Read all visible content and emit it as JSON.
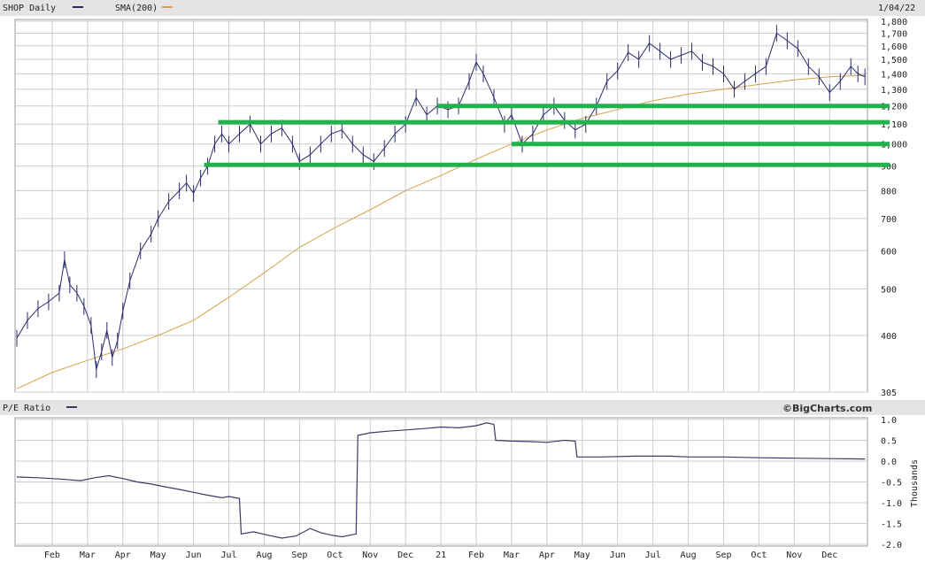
{
  "header": {
    "symbol_label": "SHOP Daily",
    "sma_label": "SMA(200)",
    "date_label": "1/04/22"
  },
  "lower_header": {
    "pe_label": "P/E Ratio",
    "brand": "©BigCharts.com",
    "y_unit": "Thousands"
  },
  "colors": {
    "price": "#2b2b6b",
    "sma": "#d4a24a",
    "support_lines": "#22b14c",
    "pe": "#3a3a6a",
    "grid": "#cccccc",
    "header_bg": "#e4e4e4"
  },
  "chart_data": [
    {
      "type": "line",
      "name": "price-panel",
      "scale": "log",
      "ylim": [
        305,
        1800
      ],
      "y_ticks": [
        305,
        400,
        500,
        600,
        700,
        800,
        900,
        1000,
        1100,
        1200,
        1300,
        1400,
        1500,
        1600,
        1700,
        1800
      ],
      "y_tick_labels": [
        "305",
        "400",
        "500",
        "600",
        "700",
        "800",
        "900",
        "1,000",
        "1,100",
        "1,200",
        "1,300",
        "1,400",
        "1,500",
        "1,600",
        "1,700",
        "1,800"
      ],
      "x_tick_labels": [
        "Feb",
        "Mar",
        "Apr",
        "May",
        "Jun",
        "Jul",
        "Aug",
        "Sep",
        "Oct",
        "Nov",
        "Dec",
        "21",
        "Feb",
        "Mar",
        "Apr",
        "May",
        "Jun",
        "Jul",
        "Aug",
        "Sep",
        "Oct",
        "Nov",
        "Dec"
      ],
      "x_range_months": [
        0,
        24
      ],
      "series": [
        {
          "name": "SHOP",
          "kind": "price",
          "x_month": [
            0,
            0.3,
            0.6,
            0.9,
            1.2,
            1.35,
            1.5,
            1.7,
            1.9,
            2.1,
            2.25,
            2.4,
            2.55,
            2.7,
            2.85,
            3.0,
            3.2,
            3.5,
            3.8,
            4.0,
            4.3,
            4.6,
            4.8,
            5.0,
            5.2,
            5.4,
            5.6,
            5.8,
            6.0,
            6.3,
            6.6,
            6.9,
            7.2,
            7.5,
            7.8,
            8.0,
            8.3,
            8.6,
            8.9,
            9.2,
            9.5,
            9.8,
            10.1,
            10.4,
            10.7,
            11.0,
            11.3,
            11.6,
            11.9,
            12.2,
            12.5,
            12.8,
            13.0,
            13.2,
            13.5,
            13.8,
            14.0,
            14.3,
            14.6,
            14.9,
            15.2,
            15.5,
            15.8,
            16.1,
            16.4,
            16.7,
            17.0,
            17.3,
            17.6,
            17.9,
            18.2,
            18.5,
            18.8,
            19.1,
            19.4,
            19.7,
            20.0,
            20.3,
            20.6,
            20.9,
            21.2,
            21.5,
            21.8,
            22.1,
            22.4,
            22.7,
            23.0,
            23.3,
            23.6,
            23.8,
            24.0
          ],
          "values": [
            395,
            430,
            455,
            470,
            490,
            575,
            510,
            490,
            460,
            420,
            340,
            370,
            410,
            360,
            390,
            450,
            520,
            600,
            650,
            700,
            760,
            800,
            830,
            790,
            850,
            900,
            1000,
            1050,
            1000,
            1050,
            1100,
            1000,
            1050,
            1080,
            1000,
            920,
            950,
            1000,
            1050,
            1070,
            1000,
            950,
            920,
            980,
            1050,
            1100,
            1250,
            1150,
            1200,
            1180,
            1200,
            1350,
            1480,
            1400,
            1250,
            1100,
            1150,
            1000,
            1050,
            1150,
            1200,
            1120,
            1070,
            1100,
            1200,
            1350,
            1420,
            1550,
            1500,
            1620,
            1560,
            1500,
            1530,
            1560,
            1480,
            1450,
            1400,
            1300,
            1350,
            1400,
            1450,
            1700,
            1640,
            1580,
            1450,
            1380,
            1280,
            1350,
            1450,
            1400,
            1380
          ]
        },
        {
          "name": "SMA(200)",
          "kind": "sma",
          "x_month": [
            0,
            1,
            2,
            3,
            4,
            5,
            6,
            7,
            8,
            9,
            10,
            11,
            12,
            13,
            14,
            15,
            16,
            17,
            18,
            19,
            20,
            21,
            22,
            23,
            24
          ],
          "values": [
            310,
            335,
            355,
            375,
            400,
            430,
            480,
            540,
            610,
            670,
            730,
            800,
            860,
            930,
            1000,
            1070,
            1130,
            1180,
            1230,
            1270,
            1300,
            1330,
            1360,
            1380,
            1390
          ]
        }
      ],
      "support_lines": [
        {
          "level": 1200,
          "x_start_month": 11.9,
          "x_end_month": 24.7
        },
        {
          "level": 1110,
          "x_start_month": 5.7,
          "x_end_month": 24.7
        },
        {
          "level": 1000,
          "x_start_month": 14.0,
          "x_end_month": 24.7
        },
        {
          "level": 905,
          "x_start_month": 5.3,
          "x_end_month": 24.7
        }
      ]
    },
    {
      "type": "line",
      "name": "pe-panel",
      "ylabel": "Thousands",
      "ylim": [
        -2.0,
        1.0
      ],
      "y_ticks": [
        1.0,
        0.5,
        0.0,
        -0.5,
        -1.0,
        -1.5,
        -2.0
      ],
      "y_tick_labels": [
        "1.0",
        "0.5",
        "0.0",
        "-0.5",
        "-1.0",
        "-1.5",
        "-2.0"
      ],
      "series": [
        {
          "name": "P/E Ratio",
          "x_month": [
            0,
            0.6,
            1.2,
            1.8,
            2.2,
            2.6,
            3.0,
            3.4,
            3.8,
            4.2,
            4.6,
            5.0,
            5.4,
            5.8,
            6.0,
            6.3,
            6.35,
            6.7,
            7.1,
            7.5,
            7.9,
            8.3,
            8.6,
            8.9,
            9.2,
            9.6,
            9.65,
            10.0,
            10.5,
            11.0,
            11.5,
            12.0,
            12.5,
            13.0,
            13.3,
            13.5,
            13.55,
            14.0,
            14.5,
            15.0,
            15.5,
            15.8,
            15.85,
            16.5,
            17.5,
            18.5,
            19.0,
            20.0,
            21.0,
            22.0,
            23.0,
            24.0
          ],
          "values": [
            -0.38,
            -0.4,
            -0.43,
            -0.47,
            -0.4,
            -0.35,
            -0.42,
            -0.5,
            -0.55,
            -0.62,
            -0.68,
            -0.75,
            -0.82,
            -0.88,
            -0.85,
            -0.9,
            -1.75,
            -1.7,
            -1.78,
            -1.85,
            -1.8,
            -1.62,
            -1.72,
            -1.78,
            -1.82,
            -1.75,
            0.62,
            0.68,
            0.72,
            0.75,
            0.78,
            0.82,
            0.8,
            0.85,
            0.92,
            0.88,
            0.5,
            0.48,
            0.47,
            0.45,
            0.5,
            0.48,
            0.1,
            0.1,
            0.12,
            0.12,
            0.1,
            0.1,
            0.08,
            0.07,
            0.06,
            0.05
          ]
        }
      ]
    }
  ]
}
